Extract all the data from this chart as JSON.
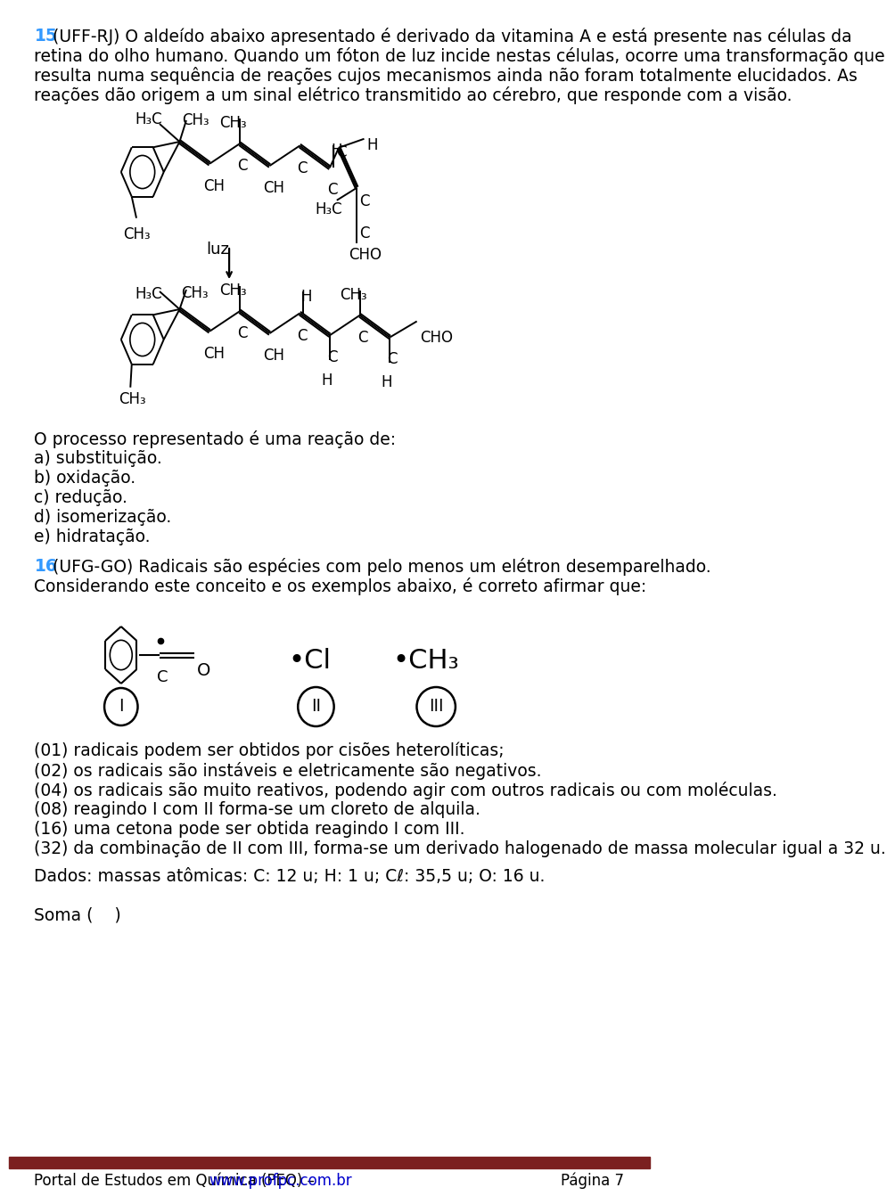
{
  "bg_color": "#ffffff",
  "q15_num_color": "#3399ff",
  "q16_num_color": "#3399ff",
  "footer_bar_color": "#7b2020",
  "footer_link_color": "#0000cc",
  "ML": 38,
  "lh": 22,
  "body_fontsize": 13.5,
  "mol_fontsize": 12,
  "q15_lines": [
    "15 (UFF-RJ) O aldeído abaixo apresentado é derivado da vitamina A e está presente nas células da",
    "retina do olho humano. Quando um fóton de luz incide nestas células, ocorre uma transformação que",
    "resulta numa sequência de reações cujos mecanismos ainda não foram totalmente elucidados. As",
    "reações dão origem a um sinal elétrico transmitido ao cérebro, que responde com a visão."
  ],
  "q15_opts": [
    "O processo representado é uma reação de:",
    "a) substituição.",
    "b) oxidação.",
    "c) redução.",
    "d) isomerização.",
    "e) hidratação."
  ],
  "q16_lines": [
    "16 (UFG-GO) Radicais são espécies com pelo menos um elétron desemparelhado.",
    "Considerando este conceito e os exemplos abaixo, é correto afirmar que:"
  ],
  "q16_items": [
    "(01) radicais podem ser obtidos por cisões heterolíticas;",
    "(02) os radicais são instáveis e eletricamente são negativos.",
    "(04) os radicais são muito reativos, podendo agir com outros radicais ou com moléculas.",
    "(08) reagindo I com II forma-se um cloreto de alquila.",
    "(16) uma cetona pode ser obtida reagindo I com III.",
    "(32) da combinação de II com III, forma-se um derivado halogenado de massa molecular igual a 32 u."
  ],
  "dados": "Dados: massas atômicas: C: 12 u; H: 1 u; Cℓ: 35,5 u; O: 16 u.",
  "soma": "Soma (    )",
  "footer_portal": "Portal de Estudos em Química (PEQ) – ",
  "footer_url": "www.profpc.com.br",
  "footer_page": "Página 7"
}
